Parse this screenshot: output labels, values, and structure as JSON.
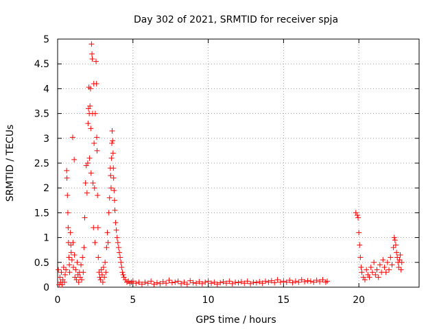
{
  "chart_data": {
    "type": "scatter",
    "title": "Day 302 of 2021, SRMTID for receiver spja",
    "xlabel": "GPS time / hours",
    "ylabel": "SRMTID / TECUs",
    "xlim": [
      0,
      24
    ],
    "ylim": [
      0,
      5
    ],
    "xticks": [
      {
        "value": 0,
        "label": "0"
      },
      {
        "value": 5,
        "label": "5"
      },
      {
        "value": 10,
        "label": "10"
      },
      {
        "value": 15,
        "label": "15"
      },
      {
        "value": 20,
        "label": "20"
      }
    ],
    "yticks": [
      {
        "value": 0,
        "label": "0"
      },
      {
        "value": 0.5,
        "label": "0.5"
      },
      {
        "value": 1,
        "label": "1"
      },
      {
        "value": 1.5,
        "label": "1.5"
      },
      {
        "value": 2,
        "label": "2"
      },
      {
        "value": 2.5,
        "label": "2.5"
      },
      {
        "value": 3,
        "label": "3"
      },
      {
        "value": 3.5,
        "label": "3.5"
      },
      {
        "value": 4,
        "label": "4"
      },
      {
        "value": 4.5,
        "label": "4.5"
      },
      {
        "value": 5,
        "label": "5"
      }
    ],
    "grid": true,
    "marker": "plus",
    "color": "#ff0000",
    "series": [
      {
        "points": [
          [
            0.05,
            0.35
          ],
          [
            0.1,
            0.05
          ],
          [
            0.15,
            0.2
          ],
          [
            0.2,
            0.1
          ],
          [
            0.25,
            0.3
          ],
          [
            0.3,
            0.05
          ],
          [
            0.35,
            0.15
          ],
          [
            0.4,
            0.4
          ],
          [
            0.45,
            0.1
          ],
          [
            0.5,
            0.25
          ],
          [
            0.55,
            0.35
          ],
          [
            0.6,
            2.35
          ],
          [
            0.62,
            2.2
          ],
          [
            0.65,
            1.85
          ],
          [
            0.68,
            1.5
          ],
          [
            0.7,
            1.2
          ],
          [
            0.72,
            0.9
          ],
          [
            0.75,
            0.6
          ],
          [
            0.78,
            0.45
          ],
          [
            0.8,
            0.3
          ],
          [
            0.85,
            1.1
          ],
          [
            0.88,
            0.85
          ],
          [
            0.9,
            0.7
          ],
          [
            0.95,
            0.55
          ],
          [
            1.0,
            3.02
          ],
          [
            1.02,
            0.9
          ],
          [
            1.05,
            0.4
          ],
          [
            1.1,
            2.57
          ],
          [
            1.12,
            0.65
          ],
          [
            1.15,
            0.2
          ],
          [
            1.2,
            0.35
          ],
          [
            1.25,
            0.15
          ],
          [
            1.3,
            0.5
          ],
          [
            1.35,
            0.25
          ],
          [
            1.4,
            0.1
          ],
          [
            1.45,
            0.3
          ],
          [
            1.5,
            0.2
          ],
          [
            1.55,
            0.45
          ],
          [
            1.6,
            0.15
          ],
          [
            1.65,
            0.6
          ],
          [
            1.7,
            0.3
          ],
          [
            1.75,
            0.8
          ],
          [
            1.8,
            1.4
          ],
          [
            1.85,
            2.1
          ],
          [
            1.9,
            2.45
          ],
          [
            1.95,
            1.9
          ],
          [
            2.0,
            2.5
          ],
          [
            2.02,
            3.3
          ],
          [
            2.05,
            3.6
          ],
          [
            2.08,
            4.03
          ],
          [
            2.1,
            3.5
          ],
          [
            2.12,
            2.6
          ],
          [
            2.15,
            3.65
          ],
          [
            2.18,
            4.0
          ],
          [
            2.2,
            3.2
          ],
          [
            2.22,
            2.3
          ],
          [
            2.25,
            4.9
          ],
          [
            2.28,
            4.7
          ],
          [
            2.3,
            4.6
          ],
          [
            2.32,
            3.5
          ],
          [
            2.35,
            2.1
          ],
          [
            2.38,
            1.2
          ],
          [
            2.4,
            4.1
          ],
          [
            2.42,
            2.9
          ],
          [
            2.45,
            2.0
          ],
          [
            2.48,
            0.9
          ],
          [
            2.5,
            3.5
          ],
          [
            2.55,
            4.55
          ],
          [
            2.58,
            4.1
          ],
          [
            2.6,
            3.02
          ],
          [
            2.62,
            2.75
          ],
          [
            2.65,
            1.85
          ],
          [
            2.68,
            1.2
          ],
          [
            2.7,
            0.6
          ],
          [
            2.75,
            0.3
          ],
          [
            2.8,
            0.2
          ],
          [
            2.85,
            0.15
          ],
          [
            2.9,
            0.35
          ],
          [
            2.95,
            0.25
          ],
          [
            3.0,
            0.1
          ],
          [
            3.05,
            0.4
          ],
          [
            3.1,
            0.2
          ],
          [
            3.15,
            0.5
          ],
          [
            3.2,
            0.3
          ],
          [
            3.25,
            0.8
          ],
          [
            3.3,
            1.1
          ],
          [
            3.35,
            0.9
          ],
          [
            3.4,
            1.5
          ],
          [
            3.45,
            1.8
          ],
          [
            3.5,
            2.4
          ],
          [
            3.52,
            2.25
          ],
          [
            3.55,
            2.0
          ],
          [
            3.58,
            2.6
          ],
          [
            3.6,
            2.9
          ],
          [
            3.62,
            3.15
          ],
          [
            3.65,
            2.95
          ],
          [
            3.68,
            2.7
          ],
          [
            3.7,
            2.4
          ],
          [
            3.72,
            2.2
          ],
          [
            3.75,
            1.95
          ],
          [
            3.78,
            1.75
          ],
          [
            3.8,
            1.55
          ],
          [
            3.85,
            1.3
          ],
          [
            3.9,
            1.15
          ],
          [
            3.95,
            1.0
          ],
          [
            4.0,
            0.9
          ],
          [
            4.05,
            0.8
          ],
          [
            4.1,
            0.7
          ],
          [
            4.15,
            0.6
          ],
          [
            4.2,
            0.5
          ],
          [
            4.25,
            0.4
          ],
          [
            4.3,
            0.3
          ],
          [
            4.35,
            0.25
          ],
          [
            4.4,
            0.2
          ],
          [
            4.5,
            0.15
          ],
          [
            4.6,
            0.1
          ],
          [
            4.7,
            0.12
          ],
          [
            4.8,
            0.08
          ],
          [
            4.9,
            0.1
          ],
          [
            5.0,
            0.12
          ],
          [
            5.2,
            0.08
          ],
          [
            5.4,
            0.1
          ],
          [
            5.6,
            0.06
          ],
          [
            5.8,
            0.1
          ],
          [
            6.0,
            0.08
          ],
          [
            6.2,
            0.12
          ],
          [
            6.4,
            0.06
          ],
          [
            6.6,
            0.09
          ],
          [
            6.8,
            0.07
          ],
          [
            7.0,
            0.11
          ],
          [
            7.2,
            0.08
          ],
          [
            7.4,
            0.14
          ],
          [
            7.6,
            0.09
          ],
          [
            7.8,
            0.1
          ],
          [
            8.0,
            0.12
          ],
          [
            8.2,
            0.07
          ],
          [
            8.4,
            0.1
          ],
          [
            8.6,
            0.06
          ],
          [
            8.8,
            0.13
          ],
          [
            9.0,
            0.09
          ],
          [
            9.2,
            0.08
          ],
          [
            9.4,
            0.11
          ],
          [
            9.6,
            0.07
          ],
          [
            9.8,
            0.1
          ],
          [
            10.0,
            0.12
          ],
          [
            10.2,
            0.08
          ],
          [
            10.4,
            0.1
          ],
          [
            10.6,
            0.06
          ],
          [
            10.8,
            0.09
          ],
          [
            11.0,
            0.11
          ],
          [
            11.2,
            0.08
          ],
          [
            11.4,
            0.12
          ],
          [
            11.6,
            0.07
          ],
          [
            11.8,
            0.1
          ],
          [
            12.0,
            0.09
          ],
          [
            12.2,
            0.11
          ],
          [
            12.4,
            0.08
          ],
          [
            12.6,
            0.12
          ],
          [
            12.8,
            0.07
          ],
          [
            13.0,
            0.1
          ],
          [
            13.2,
            0.09
          ],
          [
            13.4,
            0.11
          ],
          [
            13.6,
            0.08
          ],
          [
            13.8,
            0.12
          ],
          [
            14.0,
            0.1
          ],
          [
            14.2,
            0.13
          ],
          [
            14.4,
            0.09
          ],
          [
            14.6,
            0.15
          ],
          [
            14.8,
            0.1
          ],
          [
            15.0,
            0.12
          ],
          [
            15.2,
            0.1
          ],
          [
            15.4,
            0.14
          ],
          [
            15.6,
            0.09
          ],
          [
            15.8,
            0.12
          ],
          [
            16.0,
            0.1
          ],
          [
            16.2,
            0.15
          ],
          [
            16.4,
            0.11
          ],
          [
            16.6,
            0.13
          ],
          [
            16.8,
            0.12
          ],
          [
            17.0,
            0.1
          ],
          [
            17.2,
            0.14
          ],
          [
            17.4,
            0.11
          ],
          [
            17.6,
            0.15
          ],
          [
            17.8,
            0.1
          ],
          [
            17.9,
            0.12
          ],
          [
            19.8,
            1.5
          ],
          [
            19.9,
            1.45
          ],
          [
            19.95,
            1.4
          ],
          [
            20.0,
            1.1
          ],
          [
            20.05,
            0.85
          ],
          [
            20.1,
            0.6
          ],
          [
            20.15,
            0.4
          ],
          [
            20.2,
            0.3
          ],
          [
            20.3,
            0.2
          ],
          [
            20.4,
            0.15
          ],
          [
            20.5,
            0.35
          ],
          [
            20.6,
            0.25
          ],
          [
            20.7,
            0.2
          ],
          [
            20.8,
            0.4
          ],
          [
            20.9,
            0.3
          ],
          [
            21.0,
            0.5
          ],
          [
            21.1,
            0.25
          ],
          [
            21.2,
            0.35
          ],
          [
            21.3,
            0.2
          ],
          [
            21.4,
            0.45
          ],
          [
            21.5,
            0.3
          ],
          [
            21.6,
            0.55
          ],
          [
            21.7,
            0.4
          ],
          [
            21.8,
            0.3
          ],
          [
            21.9,
            0.5
          ],
          [
            22.0,
            0.35
          ],
          [
            22.1,
            0.6
          ],
          [
            22.2,
            0.45
          ],
          [
            22.3,
            0.8
          ],
          [
            22.35,
            1.0
          ],
          [
            22.4,
            0.95
          ],
          [
            22.45,
            0.85
          ],
          [
            22.5,
            0.7
          ],
          [
            22.55,
            0.6
          ],
          [
            22.6,
            0.5
          ],
          [
            22.65,
            0.4
          ],
          [
            22.7,
            0.55
          ],
          [
            22.75,
            0.65
          ],
          [
            22.8,
            0.35
          ],
          [
            22.85,
            0.5
          ]
        ]
      }
    ]
  }
}
